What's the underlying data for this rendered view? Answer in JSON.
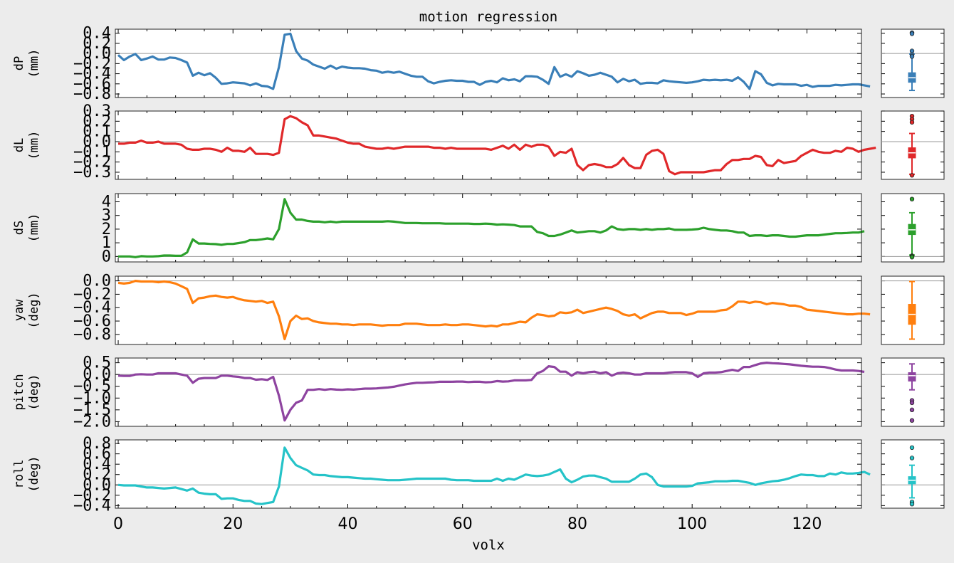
{
  "chart_data": {
    "type": "line",
    "title": "motion regression",
    "xlabel": "volx",
    "xlim": [
      -0.5,
      129.5
    ],
    "xticks": [
      0,
      20,
      40,
      60,
      80,
      100,
      120
    ],
    "panels": [
      {
        "name": "dP",
        "unit": "(mm)",
        "color": "#3a7fb8",
        "ylim": [
          -0.87,
          0.48
        ],
        "yticks": [
          0.4,
          0.2,
          0.0,
          -0.2,
          -0.4,
          -0.6,
          -0.8
        ],
        "ytick_labels": [
          "0.4",
          "0.2",
          "0.0",
          "−0.2",
          "−0.4",
          "−0.6",
          "−0.8"
        ],
        "values": [
          -0.03,
          -0.13,
          -0.06,
          -0.01,
          -0.13,
          -0.1,
          -0.06,
          -0.12,
          -0.12,
          -0.08,
          -0.09,
          -0.13,
          -0.18,
          -0.44,
          -0.38,
          -0.43,
          -0.39,
          -0.48,
          -0.6,
          -0.59,
          -0.57,
          -0.58,
          -0.59,
          -0.63,
          -0.59,
          -0.64,
          -0.65,
          -0.7,
          -0.27,
          0.37,
          0.39,
          0.05,
          -0.1,
          -0.14,
          -0.22,
          -0.26,
          -0.3,
          -0.24,
          -0.3,
          -0.26,
          -0.28,
          -0.29,
          -0.29,
          -0.3,
          -0.33,
          -0.34,
          -0.38,
          -0.36,
          -0.38,
          -0.36,
          -0.4,
          -0.44,
          -0.46,
          -0.46,
          -0.55,
          -0.59,
          -0.56,
          -0.54,
          -0.53,
          -0.54,
          -0.54,
          -0.56,
          -0.56,
          -0.62,
          -0.56,
          -0.54,
          -0.57,
          -0.49,
          -0.53,
          -0.51,
          -0.55,
          -0.45,
          -0.45,
          -0.46,
          -0.52,
          -0.6,
          -0.27,
          -0.46,
          -0.41,
          -0.46,
          -0.35,
          -0.39,
          -0.44,
          -0.42,
          -0.38,
          -0.42,
          -0.46,
          -0.57,
          -0.5,
          -0.55,
          -0.52,
          -0.6,
          -0.58,
          -0.58,
          -0.59,
          -0.53,
          -0.55,
          -0.56,
          -0.57,
          -0.58,
          -0.57,
          -0.55,
          -0.52,
          -0.53,
          -0.52,
          -0.53,
          -0.52,
          -0.54,
          -0.47,
          -0.56,
          -0.7,
          -0.35,
          -0.41,
          -0.58,
          -0.63,
          -0.6,
          -0.61,
          -0.61,
          -0.61,
          -0.64,
          -0.62,
          -0.66,
          -0.64,
          -0.64,
          -0.64,
          -0.62,
          -0.63,
          -0.62,
          -0.61,
          -0.61,
          -0.63,
          -0.65
        ],
        "box": {
          "whisker_lo": -0.73,
          "q1": -0.57,
          "median": -0.48,
          "q3": -0.38,
          "whisker_hi": -0.01,
          "outliers": [
            0.41,
            0.39,
            0.05,
            -0.03,
            -0.06
          ]
        }
      },
      {
        "name": "dL",
        "unit": "(mm)",
        "color": "#e0282a",
        "ylim": [
          -0.37,
          0.3
        ],
        "yticks": [
          0.3,
          0.2,
          0.1,
          0.0,
          -0.1,
          -0.2,
          -0.3
        ],
        "ytick_labels": [
          "0.3",
          "0.2",
          "0.1",
          "0.0",
          "−0.1",
          "−0.2",
          "−0.3"
        ],
        "values": [
          -0.02,
          -0.02,
          -0.01,
          -0.01,
          0.01,
          -0.01,
          -0.01,
          0.0,
          -0.02,
          -0.02,
          -0.02,
          -0.03,
          -0.07,
          -0.08,
          -0.08,
          -0.07,
          -0.07,
          -0.08,
          -0.1,
          -0.06,
          -0.09,
          -0.09,
          -0.1,
          -0.06,
          -0.12,
          -0.12,
          -0.12,
          -0.13,
          -0.11,
          0.22,
          0.25,
          0.23,
          0.19,
          0.16,
          0.06,
          0.06,
          0.05,
          0.04,
          0.03,
          0.01,
          -0.01,
          -0.02,
          -0.02,
          -0.05,
          -0.06,
          -0.07,
          -0.07,
          -0.06,
          -0.07,
          -0.06,
          -0.05,
          -0.05,
          -0.05,
          -0.05,
          -0.05,
          -0.06,
          -0.06,
          -0.07,
          -0.06,
          -0.07,
          -0.07,
          -0.07,
          -0.07,
          -0.07,
          -0.07,
          -0.08,
          -0.06,
          -0.04,
          -0.07,
          -0.03,
          -0.08,
          -0.03,
          -0.05,
          -0.03,
          -0.03,
          -0.05,
          -0.14,
          -0.1,
          -0.11,
          -0.07,
          -0.23,
          -0.28,
          -0.23,
          -0.22,
          -0.23,
          -0.25,
          -0.25,
          -0.22,
          -0.16,
          -0.23,
          -0.26,
          -0.26,
          -0.13,
          -0.09,
          -0.08,
          -0.12,
          -0.29,
          -0.32,
          -0.3,
          -0.3,
          -0.3,
          -0.3,
          -0.3,
          -0.29,
          -0.28,
          -0.28,
          -0.22,
          -0.18,
          -0.18,
          -0.17,
          -0.17,
          -0.14,
          -0.15,
          -0.23,
          -0.24,
          -0.18,
          -0.21,
          -0.2,
          -0.19,
          -0.14,
          -0.11,
          -0.08,
          -0.1,
          -0.11,
          -0.11,
          -0.09,
          -0.1,
          -0.06,
          -0.07,
          -0.1,
          -0.08,
          -0.07,
          -0.06
        ],
        "box": {
          "whisker_lo": -0.32,
          "q1": -0.16,
          "median": -0.11,
          "q3": -0.06,
          "whisker_hi": 0.08,
          "outliers": [
            0.25,
            0.22,
            0.19,
            -0.33
          ]
        }
      },
      {
        "name": "dS",
        "unit": "(mm)",
        "color": "#2ca02c",
        "ylim": [
          -0.4,
          4.6
        ],
        "yticks": [
          4,
          3,
          2,
          1,
          0
        ],
        "ytick_labels": [
          "4",
          "3",
          "2",
          "1",
          "0"
        ],
        "values": [
          0.0,
          0.0,
          0.0,
          -0.05,
          0.02,
          0.0,
          0.0,
          0.02,
          0.07,
          0.07,
          0.05,
          0.05,
          0.3,
          1.25,
          0.95,
          0.95,
          0.92,
          0.9,
          0.85,
          0.92,
          0.92,
          0.98,
          1.05,
          1.2,
          1.2,
          1.25,
          1.32,
          1.25,
          2.0,
          4.2,
          3.2,
          2.7,
          2.7,
          2.6,
          2.55,
          2.55,
          2.5,
          2.55,
          2.5,
          2.55,
          2.55,
          2.55,
          2.55,
          2.55,
          2.55,
          2.55,
          2.55,
          2.58,
          2.55,
          2.5,
          2.45,
          2.45,
          2.45,
          2.43,
          2.43,
          2.43,
          2.43,
          2.4,
          2.4,
          2.4,
          2.4,
          2.4,
          2.38,
          2.38,
          2.4,
          2.38,
          2.33,
          2.35,
          2.33,
          2.3,
          2.2,
          2.2,
          2.2,
          1.8,
          1.7,
          1.5,
          1.5,
          1.6,
          1.75,
          1.9,
          1.75,
          1.8,
          1.85,
          1.85,
          1.75,
          1.9,
          2.2,
          2.0,
          1.95,
          2.0,
          2.0,
          1.95,
          2.0,
          1.95,
          2.0,
          2.0,
          2.05,
          1.95,
          1.95,
          1.95,
          1.97,
          2.0,
          2.1,
          2.0,
          1.95,
          1.9,
          1.9,
          1.85,
          1.75,
          1.75,
          1.5,
          1.55,
          1.55,
          1.5,
          1.55,
          1.55,
          1.5,
          1.45,
          1.45,
          1.5,
          1.55,
          1.55,
          1.55,
          1.6,
          1.65,
          1.7,
          1.7,
          1.72,
          1.75,
          1.75,
          1.85
        ],
        "box": {
          "whisker_lo": 0.1,
          "q1": 1.6,
          "median": 1.95,
          "q3": 2.35,
          "whisker_hi": 3.2,
          "outliers": [
            4.2,
            0.05,
            0.0,
            -0.05
          ]
        }
      },
      {
        "name": "yaw",
        "unit": "(deg)",
        "color": "#ff7f0e",
        "ylim": [
          -0.95,
          0.07
        ],
        "yticks": [
          0.0,
          -0.2,
          -0.4,
          -0.6,
          -0.8
        ],
        "ytick_labels": [
          "0.0",
          "−0.2",
          "−0.4",
          "−0.6",
          "−0.8"
        ],
        "values": [
          -0.03,
          -0.04,
          -0.03,
          0.0,
          -0.01,
          -0.01,
          -0.01,
          -0.02,
          -0.01,
          -0.02,
          -0.04,
          -0.08,
          -0.12,
          -0.33,
          -0.26,
          -0.25,
          -0.23,
          -0.22,
          -0.24,
          -0.25,
          -0.24,
          -0.27,
          -0.29,
          -0.3,
          -0.31,
          -0.3,
          -0.33,
          -0.31,
          -0.53,
          -0.87,
          -0.6,
          -0.52,
          -0.57,
          -0.56,
          -0.6,
          -0.62,
          -0.63,
          -0.64,
          -0.64,
          -0.65,
          -0.65,
          -0.66,
          -0.65,
          -0.65,
          -0.65,
          -0.66,
          -0.67,
          -0.66,
          -0.66,
          -0.66,
          -0.64,
          -0.64,
          -0.64,
          -0.65,
          -0.66,
          -0.66,
          -0.66,
          -0.65,
          -0.66,
          -0.66,
          -0.65,
          -0.65,
          -0.66,
          -0.67,
          -0.68,
          -0.67,
          -0.68,
          -0.65,
          -0.65,
          -0.63,
          -0.61,
          -0.62,
          -0.55,
          -0.5,
          -0.51,
          -0.53,
          -0.52,
          -0.47,
          -0.48,
          -0.47,
          -0.43,
          -0.48,
          -0.46,
          -0.44,
          -0.42,
          -0.4,
          -0.42,
          -0.45,
          -0.5,
          -0.52,
          -0.5,
          -0.56,
          -0.52,
          -0.48,
          -0.46,
          -0.46,
          -0.48,
          -0.48,
          -0.48,
          -0.51,
          -0.49,
          -0.46,
          -0.46,
          -0.46,
          -0.46,
          -0.44,
          -0.43,
          -0.38,
          -0.31,
          -0.31,
          -0.33,
          -0.31,
          -0.32,
          -0.35,
          -0.33,
          -0.34,
          -0.35,
          -0.37,
          -0.37,
          -0.39,
          -0.43,
          -0.44,
          -0.45,
          -0.46,
          -0.47,
          -0.48,
          -0.49,
          -0.5,
          -0.5,
          -0.49,
          -0.49,
          -0.5
        ],
        "box": {
          "whisker_lo": -0.87,
          "q1": -0.65,
          "median": -0.5,
          "q3": -0.35,
          "whisker_hi": -0.01,
          "outliers": []
        }
      },
      {
        "name": "pitch",
        "unit": "(deg)",
        "color": "#8e44a0",
        "ylim": [
          -2.2,
          0.7
        ],
        "yticks": [
          0.5,
          0.0,
          -0.5,
          -1.0,
          -1.5,
          -2.0
        ],
        "ytick_labels": [
          "0.5",
          "0.0",
          "−0.5",
          "−1.0",
          "−1.5",
          "−2.0"
        ],
        "values": [
          -0.05,
          -0.06,
          -0.06,
          0.0,
          0.01,
          0.0,
          0.0,
          0.05,
          0.05,
          0.05,
          0.05,
          0.0,
          -0.05,
          -0.35,
          -0.18,
          -0.15,
          -0.15,
          -0.15,
          -0.05,
          -0.05,
          -0.08,
          -0.1,
          -0.15,
          -0.15,
          -0.22,
          -0.2,
          -0.23,
          -0.1,
          -0.9,
          -1.95,
          -1.5,
          -1.2,
          -1.1,
          -0.65,
          -0.65,
          -0.62,
          -0.65,
          -0.62,
          -0.64,
          -0.65,
          -0.63,
          -0.64,
          -0.62,
          -0.6,
          -0.6,
          -0.59,
          -0.57,
          -0.55,
          -0.52,
          -0.47,
          -0.42,
          -0.38,
          -0.35,
          -0.35,
          -0.34,
          -0.33,
          -0.31,
          -0.31,
          -0.31,
          -0.3,
          -0.3,
          -0.32,
          -0.31,
          -0.31,
          -0.33,
          -0.32,
          -0.28,
          -0.3,
          -0.29,
          -0.25,
          -0.25,
          -0.25,
          -0.23,
          0.05,
          0.15,
          0.35,
          0.32,
          0.12,
          0.12,
          -0.05,
          0.1,
          0.05,
          0.1,
          0.12,
          0.05,
          0.1,
          -0.05,
          0.05,
          0.08,
          0.05,
          0.0,
          0.0,
          0.05,
          0.05,
          0.05,
          0.05,
          0.08,
          0.1,
          0.1,
          0.1,
          0.05,
          -0.1,
          0.05,
          0.08,
          0.08,
          0.1,
          0.15,
          0.2,
          0.15,
          0.32,
          0.32,
          0.4,
          0.47,
          0.5,
          0.48,
          0.47,
          0.45,
          0.43,
          0.4,
          0.37,
          0.35,
          0.33,
          0.33,
          0.32,
          0.27,
          0.21,
          0.17,
          0.17,
          0.17,
          0.15,
          0.11
        ],
        "box": {
          "whisker_lo": -0.65,
          "q1": -0.28,
          "median": -0.05,
          "q3": 0.08,
          "whisker_hi": 0.45,
          "outliers": [
            -1.1,
            -1.2,
            -1.5,
            -1.95
          ]
        }
      },
      {
        "name": "roll",
        "unit": "(deg)",
        "color": "#25c3c8",
        "ylim": [
          -0.45,
          0.87
        ],
        "yticks": [
          0.8,
          0.6,
          0.4,
          0.2,
          0.0,
          -0.2,
          -0.4
        ],
        "ytick_labels": [
          "0.8",
          "0.6",
          "0.4",
          "0.2",
          "0.0",
          "−0.2",
          "−0.4"
        ],
        "values": [
          0.0,
          -0.01,
          -0.01,
          -0.01,
          -0.03,
          -0.05,
          -0.05,
          -0.06,
          -0.07,
          -0.06,
          -0.05,
          -0.08,
          -0.11,
          -0.07,
          -0.15,
          -0.17,
          -0.18,
          -0.18,
          -0.27,
          -0.26,
          -0.26,
          -0.29,
          -0.31,
          -0.31,
          -0.36,
          -0.37,
          -0.35,
          -0.33,
          -0.03,
          0.72,
          0.52,
          0.38,
          0.33,
          0.28,
          0.2,
          0.19,
          0.19,
          0.17,
          0.16,
          0.15,
          0.15,
          0.14,
          0.13,
          0.12,
          0.12,
          0.11,
          0.1,
          0.09,
          0.09,
          0.09,
          0.1,
          0.11,
          0.12,
          0.12,
          0.12,
          0.12,
          0.12,
          0.12,
          0.1,
          0.09,
          0.09,
          0.09,
          0.08,
          0.08,
          0.08,
          0.08,
          0.12,
          0.08,
          0.12,
          0.1,
          0.15,
          0.2,
          0.18,
          0.17,
          0.18,
          0.2,
          0.25,
          0.3,
          0.12,
          0.05,
          0.1,
          0.16,
          0.18,
          0.18,
          0.15,
          0.12,
          0.06,
          0.06,
          0.06,
          0.06,
          0.12,
          0.2,
          0.22,
          0.15,
          0.0,
          -0.03,
          -0.03,
          -0.03,
          -0.03,
          -0.03,
          -0.02,
          0.03,
          0.04,
          0.05,
          0.07,
          0.07,
          0.07,
          0.08,
          0.08,
          0.06,
          0.04,
          0.0,
          0.03,
          0.05,
          0.07,
          0.08,
          0.1,
          0.13,
          0.17,
          0.2,
          0.19,
          0.19,
          0.17,
          0.17,
          0.22,
          0.2,
          0.24,
          0.22,
          0.22,
          0.23,
          0.25,
          0.2
        ],
        "box": {
          "whisker_lo": -0.25,
          "q1": 0.02,
          "median": 0.09,
          "q3": 0.16,
          "whisker_hi": 0.38,
          "outliers": [
            0.72,
            0.52,
            -0.33,
            -0.37
          ]
        }
      }
    ]
  }
}
